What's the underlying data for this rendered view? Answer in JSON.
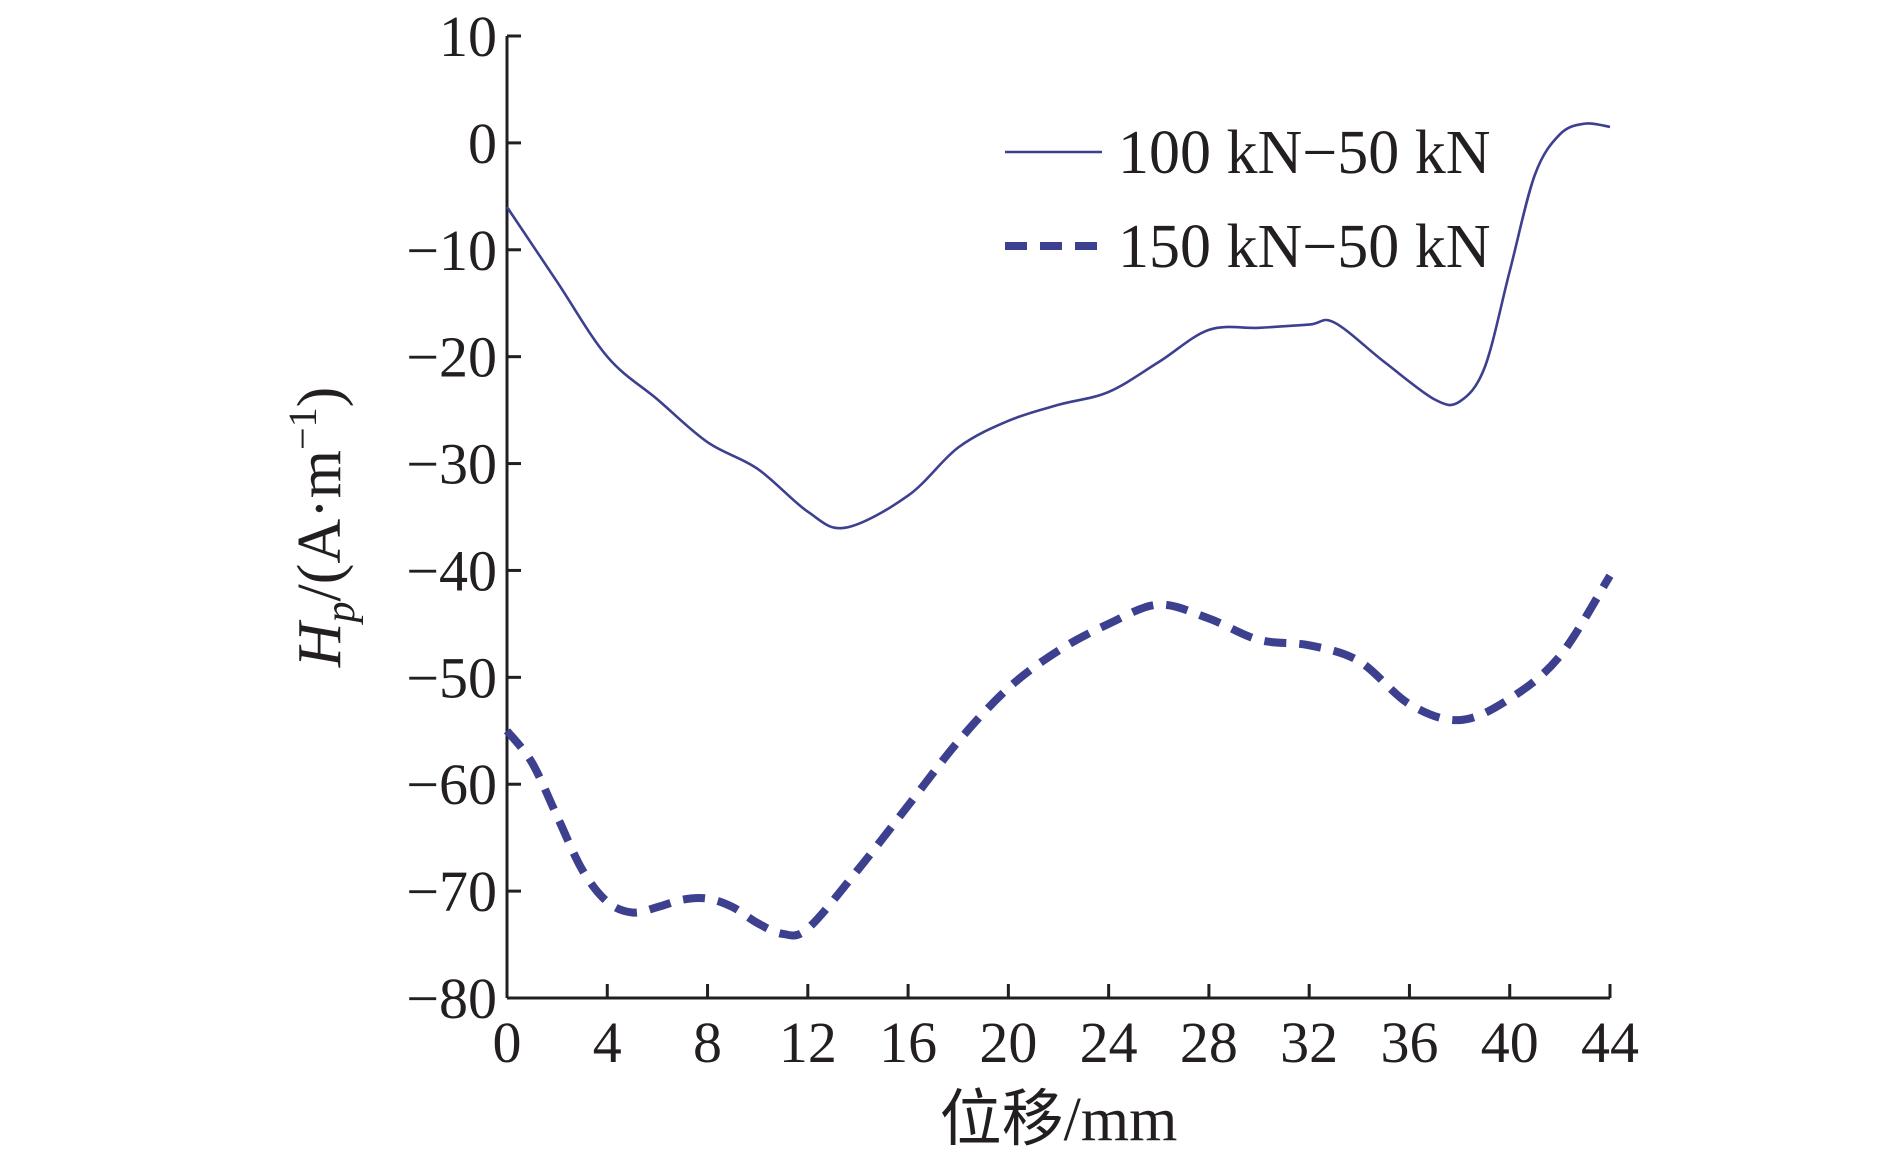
{
  "chart_data": {
    "type": "line",
    "title": "",
    "xlabel": "位移/mm",
    "ylabel": {
      "symbol": "H",
      "subscript": "p",
      "unit_prefix": "/(A·m",
      "unit_exponent": "−1",
      "unit_suffix": ")"
    },
    "xlim": [
      0,
      44
    ],
    "ylim": [
      -80,
      10
    ],
    "xticks": [
      "0",
      "4",
      "8",
      "12",
      "16",
      "20",
      "24",
      "28",
      "32",
      "36",
      "40",
      "44"
    ],
    "yticks": [
      "10",
      "0",
      "−10",
      "−20",
      "−30",
      "−40",
      "−50",
      "−60",
      "−70",
      "−80"
    ],
    "grid": false,
    "legend_position": "top-right",
    "series": [
      {
        "name": "100 kN−50 kN",
        "style": "solid",
        "color": "#3d3f8f",
        "x": [
          0,
          2,
          4,
          6,
          8,
          10,
          12,
          13.5,
          16,
          18,
          20,
          22,
          24,
          26,
          28,
          30,
          32,
          33,
          35,
          37,
          38,
          39,
          40,
          41,
          42,
          43,
          44
        ],
        "y": [
          -6,
          -13,
          -20,
          -24,
          -28,
          -30.5,
          -34.5,
          -36,
          -33,
          -28.5,
          -26,
          -24.5,
          -23.3,
          -20.5,
          -17.5,
          -17.3,
          -17,
          -16.8,
          -20.5,
          -24,
          -24.2,
          -21,
          -12,
          -3,
          0.8,
          1.8,
          1.5
        ]
      },
      {
        "name": "150 kN−50 kN",
        "style": "dashed",
        "color": "#3d3f8f",
        "x": [
          0,
          1,
          2,
          3,
          4,
          5,
          6,
          7,
          8,
          9,
          10,
          11,
          12,
          14,
          16,
          18,
          20,
          22,
          24,
          26,
          28,
          30,
          32,
          34,
          36,
          38,
          40,
          42,
          44
        ],
        "y": [
          -55,
          -58,
          -63,
          -68,
          -71,
          -72,
          -71.5,
          -70.8,
          -70.7,
          -71.5,
          -73,
          -74,
          -73.5,
          -68,
          -62,
          -56,
          -51,
          -47.5,
          -45,
          -43.2,
          -44.5,
          -46.5,
          -47,
          -48.5,
          -52.5,
          -54,
          -52,
          -48,
          -40.5
        ]
      }
    ]
  }
}
